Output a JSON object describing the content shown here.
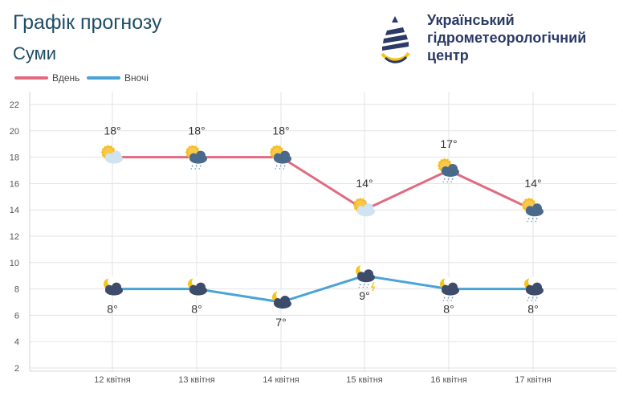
{
  "header": {
    "title": "Графік прогнозу",
    "city": "Суми"
  },
  "logo": {
    "line1": "Український",
    "line2": "гідрометеорологічний",
    "line3": "центр",
    "icon": "droplet-logo-icon",
    "colors": {
      "navy": "#2b3a66",
      "yellow": "#f5c518"
    }
  },
  "chart_data": {
    "type": "line",
    "categories": [
      "12 квітня",
      "13 квітня",
      "14 квітня",
      "15 квітня",
      "16 квітня",
      "17 квітня"
    ],
    "series": [
      {
        "name": "Вдень",
        "color": "#e06b81",
        "values": [
          18,
          18,
          18,
          14,
          17,
          14
        ],
        "labels": [
          "18°",
          "18°",
          "18°",
          "14°",
          "17°",
          "14°"
        ],
        "icons": [
          "sun-cloud-icon",
          "sun-cloud-rain-icon",
          "sun-cloud-rain-icon",
          "sun-cloud-icon",
          "sun-cloud-rain-icon",
          "sun-cloud-rain-icon"
        ]
      },
      {
        "name": "Вночі",
        "color": "#4aa3d6",
        "values": [
          8,
          8,
          7,
          9,
          8,
          8
        ],
        "labels": [
          "8°",
          "8°",
          "7°",
          "9°",
          "8°",
          "8°"
        ],
        "icons": [
          "moon-cloud-icon",
          "moon-cloud-icon",
          "moon-cloud-icon",
          "moon-cloud-rain-storm-icon",
          "moon-cloud-rain-icon",
          "moon-cloud-rain-icon"
        ]
      }
    ],
    "yticks": [
      "2",
      "4",
      "6",
      "8",
      "10",
      "12",
      "14",
      "16",
      "18",
      "20",
      "22"
    ],
    "ylim": [
      2,
      22
    ],
    "grid": true,
    "legend_position": "top-left"
  }
}
